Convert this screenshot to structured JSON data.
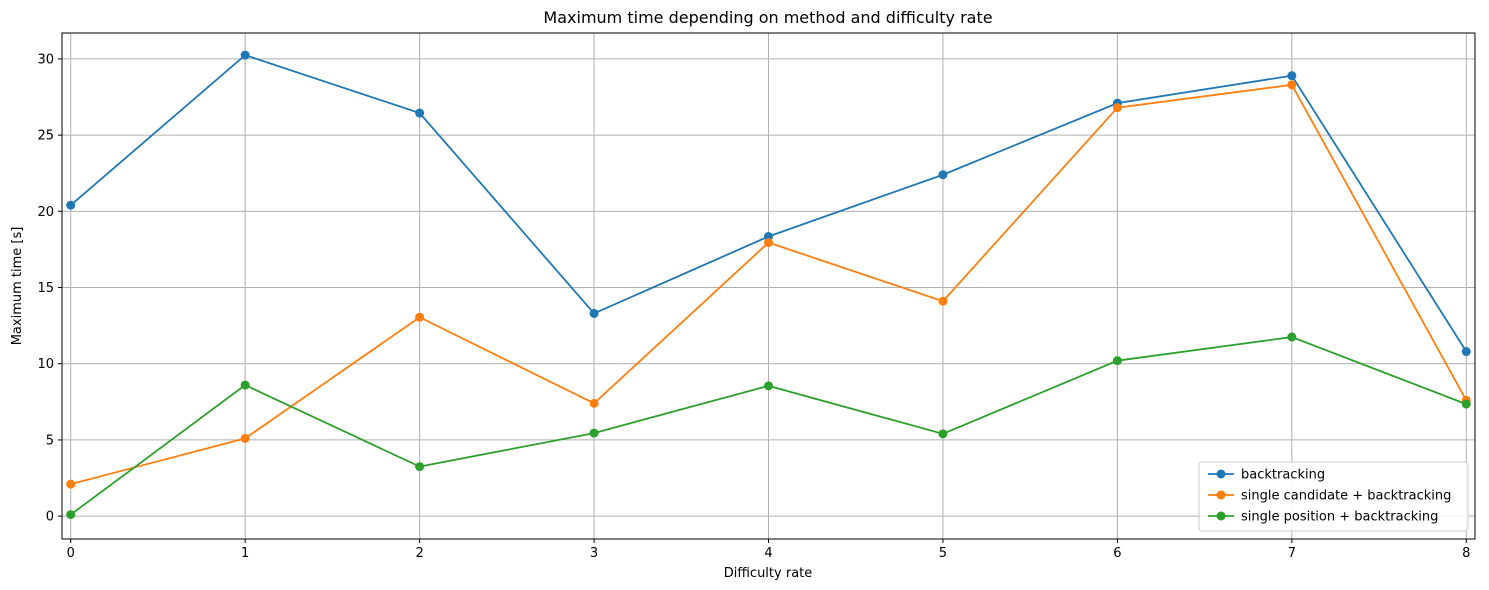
{
  "chart_data": {
    "type": "line",
    "title": "Maximum time depending on method and difficulty rate",
    "xlabel": "Difficulty rate",
    "ylabel": "Maximum time [s]",
    "x": [
      0,
      1,
      2,
      3,
      4,
      5,
      6,
      7,
      8
    ],
    "xticks": [
      "0",
      "1",
      "2",
      "3",
      "4",
      "5",
      "6",
      "7",
      "8"
    ],
    "yticks": [
      0,
      5,
      10,
      15,
      20,
      25,
      30
    ],
    "xlim": [
      -0.05,
      8.05
    ],
    "ylim": [
      -1.5,
      31.7
    ],
    "grid": true,
    "legend_position": "lower-right",
    "marker": "circle",
    "series": [
      {
        "name": "backtracking",
        "color": "#1f77b4",
        "values": [
          20.4,
          30.25,
          26.45,
          13.3,
          18.35,
          22.4,
          27.1,
          28.9,
          10.8
        ]
      },
      {
        "name": "single candidate + backtracking",
        "color": "#ff7f0e",
        "values": [
          2.1,
          5.1,
          13.05,
          7.4,
          17.95,
          14.1,
          26.8,
          28.3,
          7.6
        ]
      },
      {
        "name": "single position + backtracking",
        "color": "#2ca02c",
        "values": [
          0.1,
          8.6,
          3.25,
          5.45,
          8.55,
          5.4,
          10.2,
          11.75,
          7.35
        ]
      }
    ]
  }
}
